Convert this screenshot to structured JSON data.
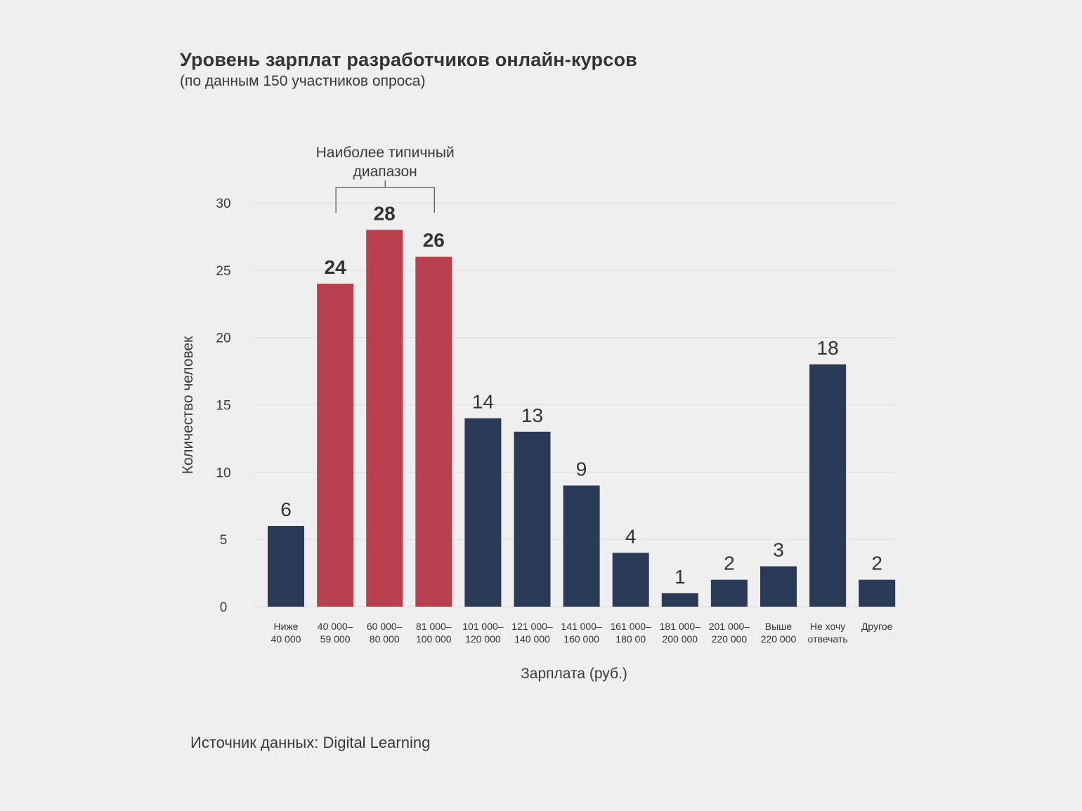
{
  "chart_data": {
    "type": "bar",
    "title": "Уровень зарплат разработчиков онлайн-курсов",
    "subtitle": "(по данным 150 участников опроса)",
    "xlabel": "Зарплата (руб.)",
    "ylabel": "Количество человек",
    "ylim": [
      0,
      30
    ],
    "yticks": [
      0,
      5,
      10,
      15,
      20,
      25,
      30
    ],
    "grid": true,
    "categories": [
      [
        "Ниже",
        "40 000"
      ],
      [
        "40 000–",
        "59 000"
      ],
      [
        "60 000–",
        "80 000"
      ],
      [
        "81 000–",
        "100 000"
      ],
      [
        "101 000–",
        "120 000"
      ],
      [
        "121 000–",
        "140 000"
      ],
      [
        "141 000–",
        "160 000"
      ],
      [
        "161 000–",
        "180 00"
      ],
      [
        "181 000–",
        "200 000"
      ],
      [
        "201 000–",
        "220 000"
      ],
      [
        "Выше",
        "220 000"
      ],
      [
        "Не хочу",
        "отвечать"
      ],
      [
        "Другое"
      ]
    ],
    "values": [
      6,
      24,
      28,
      26,
      14,
      13,
      9,
      4,
      1,
      2,
      3,
      18,
      2
    ],
    "highlighted": [
      false,
      true,
      true,
      true,
      false,
      false,
      false,
      false,
      false,
      false,
      false,
      false,
      false
    ],
    "colors": {
      "default": "#2b3a57",
      "highlight": "#b8404c",
      "grid": "#dcdcdc",
      "background": "#efefef",
      "text": "#333333"
    },
    "annotation": {
      "lines": [
        "Наиболее типичный",
        "диапазон"
      ],
      "bracket_from_index": 1,
      "bracket_to_index": 3
    },
    "source": "Источник данных: Digital Learning"
  }
}
